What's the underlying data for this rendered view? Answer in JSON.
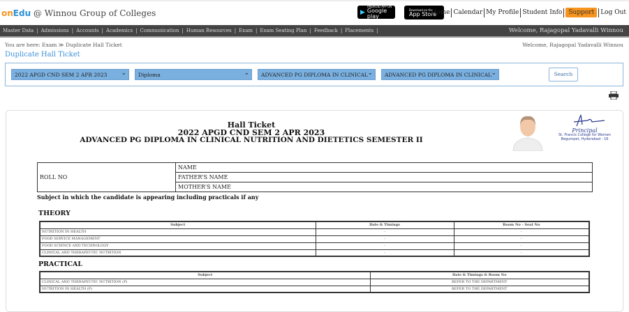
{
  "header": {
    "brand_on": "on",
    "brand_edu": "Edu",
    "brand_rest": " @ Winnou Group of Colleges",
    "google_play": {
      "small": "ANDROID APP ON",
      "big": "Google play"
    },
    "app_store": {
      "small": "Download on the",
      "big": "App Store"
    },
    "links": [
      "Home",
      "Calendar",
      "My Profile",
      "Student Info",
      "Support",
      "Log Out"
    ]
  },
  "nav": {
    "items": [
      "Master Data",
      "Admissions",
      "Accounts",
      "Academics",
      "Communication",
      "Human Resources",
      "Exam",
      "Exam Seating Plan",
      "Feedback",
      "Placements"
    ],
    "welcome": "Welcome, Rajagopal Yadavalli Winnou"
  },
  "breadcrumb": {
    "text": "You are here: Exam ≫ Duplicate Hall Ticket"
  },
  "welcome2": "Welcome, Rajagopal Yadavalli Winnou",
  "page_title": "Duplicate Hall Ticket",
  "filters": {
    "exam": "2022 APGD CND SEM 2 APR 2023",
    "program": "Diploma",
    "course": "ADVANCED PG DIPLOMA IN CLINICAL",
    "course2": "ADVANCED PG DIPLOMA IN CLINICAL",
    "search": "Search"
  },
  "ticket": {
    "title": "Hall Ticket",
    "exam": "2022 APGD CND SEM 2 APR 2023",
    "course": "ADVANCED PG DIPLOMA IN CLINICAL NUTRITION AND DIETETICS SEMESTER II",
    "signature": {
      "title": "Principal",
      "line1": "St. Francis College for Women",
      "line2": "Begumpet, Hyderabad - 16"
    },
    "roll_no": "ROLL NO",
    "name": "NAME",
    "father": "FATHER'S NAME",
    "mother": "MOTHER'S NAME",
    "subjects_note": "Subject in which the candidate is appearing including practicals if any",
    "theory_label": "THEORY",
    "theory_headers": [
      "Subject",
      "Date & Timings",
      "Room No - Seat No"
    ],
    "theory_rows": [
      [
        "NUTRITION IN HEALTH",
        "-",
        "-"
      ],
      [
        "FOOD SERVICE MANAGEMENT",
        "-",
        "-"
      ],
      [
        "FOOD SCIENCE AND TECHNOLOGY",
        "-",
        "-"
      ],
      [
        "CLINICAL AND THERAPEUTIC NUTRITION",
        "-",
        "-"
      ]
    ],
    "practical_label": "PRACTICAL",
    "practical_headers": [
      "Subject",
      "Date & Timings & Room No"
    ],
    "practical_rows": [
      [
        "CLINICAL AND THERAPEUTIC NUTRITION (P)",
        "REFER TO THE DEPARTMENT"
      ],
      [
        "NUTRITION IN HEALTH (P)",
        "REFER TO THE DEPARTMENT"
      ]
    ]
  },
  "colors": {
    "accent": "#3a8fd8",
    "support": "#f7941d",
    "nav": "#444444"
  }
}
